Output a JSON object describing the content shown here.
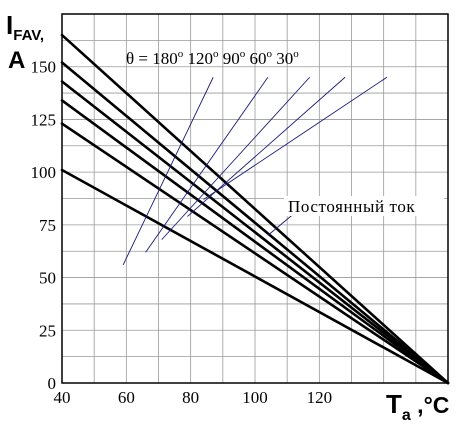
{
  "chart_data": {
    "type": "line",
    "y_axis_label": {
      "main": "I",
      "sub": "FAV,",
      "unit": "A"
    },
    "x_axis_label": {
      "main": "T",
      "sub": "a",
      "unit": " ,°C"
    },
    "x_ticks": [
      "40",
      "60",
      "80",
      "100",
      "120"
    ],
    "y_ticks": [
      "0",
      "25",
      "50",
      "75",
      "100",
      "125",
      "150"
    ],
    "xlim": [
      40,
      160
    ],
    "ylim": [
      0,
      175
    ],
    "grid": true,
    "x_minor_step": 10,
    "y_minor_step": 12.5,
    "angle_label": {
      "symbol": "θ",
      "equals": "=",
      "values": [
        "180",
        "120",
        "90",
        "60",
        "30"
      ],
      "degree": "o"
    },
    "dc_label": "Постоянный ток",
    "series": [
      {
        "x": [
          40,
          160
        ],
        "y": [
          165,
          0
        ]
      },
      {
        "x": [
          40,
          160
        ],
        "y": [
          152,
          0
        ]
      },
      {
        "x": [
          40,
          160
        ],
        "y": [
          143,
          0
        ]
      },
      {
        "x": [
          40,
          160
        ],
        "y": [
          134,
          0
        ]
      },
      {
        "x": [
          40,
          160
        ],
        "y": [
          123,
          0
        ]
      },
      {
        "x": [
          40,
          160
        ],
        "y": [
          101,
          0
        ]
      }
    ],
    "leader_lines": [
      {
        "from": [
          59,
          56
        ],
        "to": [
          87,
          145
        ]
      },
      {
        "from": [
          66,
          62
        ],
        "to": [
          104,
          145
        ]
      },
      {
        "from": [
          71,
          68
        ],
        "to": [
          117,
          145
        ]
      },
      {
        "from": [
          79,
          79
        ],
        "to": [
          128,
          145
        ]
      },
      {
        "from": [
          84,
          87
        ],
        "to": [
          141,
          145
        ]
      },
      {
        "from": [
          104,
          70
        ],
        "to": [
          115,
          84
        ]
      }
    ]
  }
}
